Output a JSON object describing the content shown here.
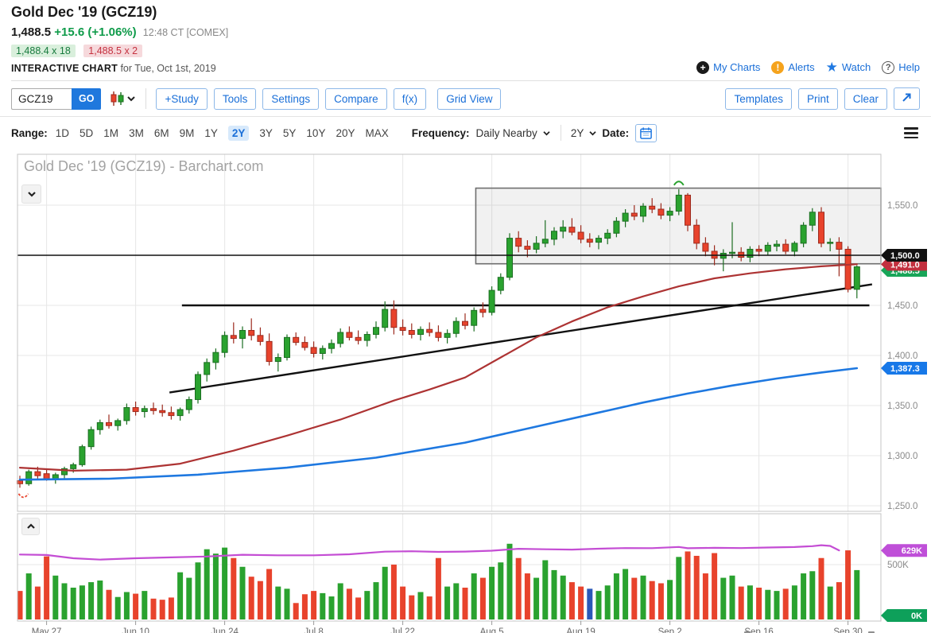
{
  "header": {
    "title": "Gold Dec '19 (GCZ19)",
    "last_price": "1,488.5",
    "change": "+15.6 (+1.06%)",
    "quote_time": "12:48 CT [COMEX]",
    "bid": "1,488.4 x 18",
    "ask": "1,488.5 x 2",
    "page_label": "INTERACTIVE CHART",
    "page_label_suffix": "for Tue, Oct 1st, 2019"
  },
  "top_links": {
    "my_charts": "My Charts",
    "alerts": "Alerts",
    "watch": "Watch",
    "help": "Help",
    "my_charts_icon": "plus-circle-icon",
    "alerts_icon": "exclamation-circle-icon",
    "watch_icon": "star-icon",
    "help_icon": "question-circle-icon"
  },
  "toolbar": {
    "symbol_value": "GCZ19",
    "go_label": "GO",
    "chart_type_icon": "candlestick-icon",
    "buttons": [
      "+Study",
      "Tools",
      "Settings",
      "Compare",
      "f(x)",
      "Grid View"
    ],
    "right_buttons": [
      "Templates",
      "Print",
      "Clear"
    ],
    "expand_icon": "expand-arrow-icon"
  },
  "range_bar": {
    "range_label": "Range:",
    "items": [
      "1D",
      "5D",
      "1M",
      "3M",
      "6M",
      "9M",
      "1Y",
      "2Y",
      "3Y",
      "5Y",
      "10Y",
      "20Y",
      "MAX"
    ],
    "active_item": "2Y",
    "frequency_label": "Frequency:",
    "frequency_value": "Daily Nearby",
    "period_value": "2Y",
    "date_label": "Date:",
    "calendar_icon": "calendar-icon",
    "menu_icon": "hamburger-icon"
  },
  "chart": {
    "watermark_title": "Gold Dec '19 (GCZ19) - Barchart.com",
    "price_pane_collapse_icon": "chevron-down-icon",
    "volume_pane_collapse_icon": "chevron-up-icon"
  },
  "chart_data": {
    "type": "candlestick",
    "title": "Gold Dec '19 (GCZ19) - Barchart.com",
    "symbol": "GCZ19",
    "x_tick_labels": [
      "May 27",
      "Jun 10",
      "Jun 24",
      "Jul 8",
      "Jul 22",
      "Aug 5",
      "Aug 19",
      "Sep 2",
      "Sep 16",
      "Sep 30"
    ],
    "x_tick_indices": [
      3,
      13,
      23,
      33,
      43,
      53,
      63,
      73,
      83,
      93
    ],
    "y_ticks": [
      {
        "price": 1550,
        "label": "1,550.0"
      },
      {
        "price": 1500,
        "label": "1,500.0"
      },
      {
        "price": 1450,
        "label": "1,450.0"
      },
      {
        "price": 1400,
        "label": "1,400.0"
      },
      {
        "price": 1350,
        "label": "1,350.0"
      },
      {
        "price": 1300,
        "label": "1,300.0"
      },
      {
        "price": 1250,
        "label": "1,250.0"
      }
    ],
    "ylim": [
      1245,
      1600
    ],
    "volume_tick": {
      "value": 500,
      "label": "500K"
    },
    "volume_unit": "K",
    "grid": true,
    "candles_ohlcv": [
      [
        1275,
        1280,
        1268,
        1272,
        260
      ],
      [
        1272,
        1286,
        1270,
        1284,
        420
      ],
      [
        1284,
        1289,
        1277,
        1280,
        300
      ],
      [
        1282,
        1287,
        1275,
        1277,
        575
      ],
      [
        1277,
        1283,
        1272,
        1281,
        400
      ],
      [
        1281,
        1289,
        1277,
        1287,
        330
      ],
      [
        1287,
        1293,
        1283,
        1291,
        290
      ],
      [
        1291,
        1311,
        1289,
        1309,
        310
      ],
      [
        1309,
        1329,
        1306,
        1326,
        340
      ],
      [
        1326,
        1336,
        1321,
        1333,
        355
      ],
      [
        1333,
        1341,
        1327,
        1330,
        270
      ],
      [
        1330,
        1337,
        1325,
        1335,
        205
      ],
      [
        1335,
        1352,
        1331,
        1348,
        250
      ],
      [
        1348,
        1354,
        1340,
        1344,
        235
      ],
      [
        1344,
        1350,
        1338,
        1347,
        260
      ],
      [
        1347,
        1353,
        1341,
        1345,
        190
      ],
      [
        1345,
        1351,
        1339,
        1343,
        180
      ],
      [
        1343,
        1349,
        1336,
        1340,
        200
      ],
      [
        1340,
        1348,
        1335,
        1346,
        430
      ],
      [
        1346,
        1359,
        1342,
        1356,
        380
      ],
      [
        1356,
        1384,
        1352,
        1381,
        520
      ],
      [
        1381,
        1397,
        1374,
        1393,
        640
      ],
      [
        1393,
        1407,
        1386,
        1403,
        600
      ],
      [
        1403,
        1424,
        1398,
        1420,
        655
      ],
      [
        1420,
        1433,
        1412,
        1417,
        560
      ],
      [
        1417,
        1429,
        1407,
        1425,
        480
      ],
      [
        1425,
        1437,
        1415,
        1420,
        390
      ],
      [
        1420,
        1428,
        1410,
        1414,
        350
      ],
      [
        1414,
        1422,
        1390,
        1394,
        460
      ],
      [
        1394,
        1402,
        1384,
        1398,
        300
      ],
      [
        1398,
        1421,
        1395,
        1418,
        280
      ],
      [
        1418,
        1423,
        1410,
        1413,
        150
      ],
      [
        1413,
        1419,
        1405,
        1408,
        230
      ],
      [
        1408,
        1414,
        1398,
        1402,
        260
      ],
      [
        1402,
        1410,
        1396,
        1407,
        240
      ],
      [
        1407,
        1416,
        1402,
        1412,
        210
      ],
      [
        1412,
        1427,
        1408,
        1423,
        330
      ],
      [
        1423,
        1429,
        1415,
        1418,
        280
      ],
      [
        1418,
        1425,
        1411,
        1415,
        200
      ],
      [
        1415,
        1424,
        1409,
        1421,
        260
      ],
      [
        1421,
        1434,
        1417,
        1428,
        340
      ],
      [
        1428,
        1454,
        1424,
        1446,
        480
      ],
      [
        1446,
        1455,
        1421,
        1428,
        500
      ],
      [
        1428,
        1436,
        1420,
        1425,
        300
      ],
      [
        1425,
        1432,
        1417,
        1421,
        220
      ],
      [
        1421,
        1429,
        1415,
        1426,
        250
      ],
      [
        1426,
        1433,
        1419,
        1423,
        210
      ],
      [
        1423,
        1430,
        1414,
        1418,
        560
      ],
      [
        1418,
        1426,
        1412,
        1422,
        300
      ],
      [
        1422,
        1438,
        1418,
        1434,
        330
      ],
      [
        1434,
        1442,
        1426,
        1430,
        290
      ],
      [
        1430,
        1448,
        1424,
        1445,
        420
      ],
      [
        1446,
        1453,
        1438,
        1443,
        380
      ],
      [
        1443,
        1469,
        1440,
        1465,
        480
      ],
      [
        1465,
        1482,
        1461,
        1478,
        520
      ],
      [
        1478,
        1522,
        1475,
        1517,
        690
      ],
      [
        1517,
        1524,
        1503,
        1509,
        560
      ],
      [
        1509,
        1515,
        1498,
        1506,
        420
      ],
      [
        1506,
        1519,
        1502,
        1512,
        380
      ],
      [
        1512,
        1535,
        1508,
        1516,
        540
      ],
      [
        1516,
        1528,
        1510,
        1524,
        450
      ],
      [
        1524,
        1535,
        1517,
        1528,
        400
      ],
      [
        1528,
        1537,
        1520,
        1523,
        340
      ],
      [
        1523,
        1530,
        1512,
        1516,
        300
      ],
      [
        1516,
        1522,
        1508,
        1513,
        280
      ],
      [
        1513,
        1520,
        1506,
        1517,
        260
      ],
      [
        1517,
        1526,
        1511,
        1522,
        310
      ],
      [
        1522,
        1538,
        1518,
        1534,
        420
      ],
      [
        1534,
        1546,
        1528,
        1542,
        460
      ],
      [
        1542,
        1550,
        1535,
        1539,
        380
      ],
      [
        1539,
        1552,
        1533,
        1549,
        400
      ],
      [
        1549,
        1557,
        1542,
        1546,
        350
      ],
      [
        1546,
        1552,
        1536,
        1540,
        330
      ],
      [
        1540,
        1548,
        1534,
        1544,
        360
      ],
      [
        1544,
        1566,
        1540,
        1560,
        570
      ],
      [
        1560,
        1562,
        1524,
        1530,
        620
      ],
      [
        1530,
        1536,
        1506,
        1512,
        580
      ],
      [
        1512,
        1518,
        1499,
        1504,
        420
      ],
      [
        1504,
        1510,
        1490,
        1497,
        605
      ],
      [
        1497,
        1506,
        1484,
        1502,
        380
      ],
      [
        1502,
        1533,
        1497,
        1503,
        400
      ],
      [
        1503,
        1508,
        1494,
        1498,
        300
      ],
      [
        1498,
        1509,
        1493,
        1506,
        310
      ],
      [
        1506,
        1510,
        1499,
        1504,
        290
      ],
      [
        1504,
        1513,
        1500,
        1510,
        270
      ],
      [
        1509,
        1515,
        1504,
        1511,
        260
      ],
      [
        1511,
        1516,
        1501,
        1504,
        280
      ],
      [
        1504,
        1514,
        1499,
        1512,
        310
      ],
      [
        1512,
        1533,
        1508,
        1530,
        420
      ],
      [
        1530,
        1547,
        1524,
        1543,
        440
      ],
      [
        1543,
        1548,
        1508,
        1512,
        560
      ],
      [
        1512,
        1517,
        1504,
        1513,
        300
      ],
      [
        1513,
        1518,
        1479,
        1506,
        340
      ],
      [
        1506,
        1509,
        1463,
        1466,
        630
      ],
      [
        1466,
        1490,
        1457,
        1488.5,
        450
      ]
    ],
    "blue_volume_index": 64,
    "last_price_tag": {
      "label": "1,488.5",
      "color": "#18a558"
    },
    "ma_red": {
      "label": "1,491.0",
      "color": "#ad3333",
      "tag_color": "#c22f3e",
      "points": [
        [
          0,
          1288
        ],
        [
          6,
          1285
        ],
        [
          12,
          1286
        ],
        [
          18,
          1292
        ],
        [
          24,
          1305
        ],
        [
          30,
          1320
        ],
        [
          36,
          1336
        ],
        [
          42,
          1355
        ],
        [
          46,
          1366
        ],
        [
          50,
          1378
        ],
        [
          54,
          1398
        ],
        [
          58,
          1418
        ],
        [
          62,
          1434
        ],
        [
          66,
          1448
        ],
        [
          70,
          1459
        ],
        [
          74,
          1469
        ],
        [
          78,
          1477
        ],
        [
          82,
          1482
        ],
        [
          86,
          1486
        ],
        [
          90,
          1489
        ],
        [
          94,
          1491
        ]
      ]
    },
    "ma_blue": {
      "label": "1,387.3",
      "color": "#1e78e0",
      "tag_color": "#1778e8",
      "points": [
        [
          0,
          1276
        ],
        [
          10,
          1277
        ],
        [
          20,
          1281
        ],
        [
          30,
          1288
        ],
        [
          40,
          1298
        ],
        [
          50,
          1313
        ],
        [
          55,
          1323
        ],
        [
          60,
          1333
        ],
        [
          65,
          1343
        ],
        [
          70,
          1353
        ],
        [
          75,
          1362
        ],
        [
          80,
          1370
        ],
        [
          85,
          1377
        ],
        [
          90,
          1383
        ],
        [
          94,
          1387.3
        ]
      ]
    },
    "open_interest": {
      "label": "629K",
      "color": "#c44dd4",
      "tag_color": "#bf4fd8",
      "points": [
        [
          0,
          592
        ],
        [
          3,
          588
        ],
        [
          6,
          558
        ],
        [
          9,
          546
        ],
        [
          13,
          558
        ],
        [
          17,
          566
        ],
        [
          21,
          574
        ],
        [
          25,
          590
        ],
        [
          29,
          585
        ],
        [
          33,
          585
        ],
        [
          37,
          594
        ],
        [
          41,
          618
        ],
        [
          44,
          622
        ],
        [
          47,
          616
        ],
        [
          50,
          619
        ],
        [
          53,
          627
        ],
        [
          56,
          644
        ],
        [
          59,
          640
        ],
        [
          62,
          637
        ],
        [
          65,
          645
        ],
        [
          68,
          651
        ],
        [
          71,
          650
        ],
        [
          74,
          661
        ],
        [
          75,
          649
        ],
        [
          78,
          653
        ],
        [
          81,
          651
        ],
        [
          84,
          656
        ],
        [
          87,
          660
        ],
        [
          89,
          668
        ],
        [
          90,
          677
        ],
        [
          91,
          670
        ],
        [
          92,
          630
        ]
      ]
    },
    "volume_zero_tag": {
      "label": "0K",
      "color": "#0ea05a"
    },
    "annotations": {
      "resistance_box": {
        "from_index": 51.2,
        "to_index": 97,
        "top_price": 1567,
        "bottom_price": 1491.5
      },
      "hline_1500": {
        "price": 1500,
        "tag_label": "1,500.0",
        "tag_color": "#111111"
      },
      "hline_1450": {
        "price": 1450,
        "from_index": 18.2,
        "to_index": 95.4
      },
      "trendline": {
        "from": [
          16.8,
          1363
        ],
        "to": [
          95.7,
          1471
        ]
      },
      "green_arc_marker": {
        "index": 74,
        "price": 1570
      },
      "red_arc_marker": {
        "index": 0.4,
        "price": 1262
      }
    },
    "colors": {
      "up": "#2aa22f",
      "up_border": "#1c6e22",
      "down": "#e8432c",
      "down_border": "#9c2b1e",
      "grid": "#e7e7e7",
      "frame": "#c4c4c4",
      "axis_text": "#8a8a8a",
      "blue_volume": "#2b58b8"
    },
    "legend_position": "none"
  }
}
